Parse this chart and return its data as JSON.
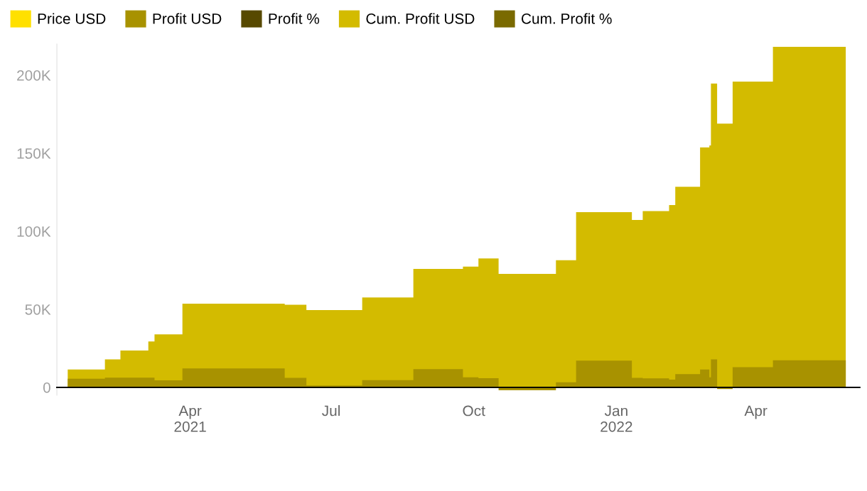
{
  "chart_data": {
    "type": "area",
    "x": [
      "2021-01-12",
      "2021-02-05",
      "2021-02-15",
      "2021-03-05",
      "2021-03-09",
      "2021-03-27",
      "2021-06-01",
      "2021-06-15",
      "2021-07-21",
      "2021-08-23",
      "2021-09-24",
      "2021-10-04",
      "2021-10-17",
      "2021-11-23",
      "2021-12-06",
      "2022-01-11",
      "2022-01-18",
      "2022-02-04",
      "2022-02-08",
      "2022-02-24",
      "2022-03-02",
      "2022-03-03",
      "2022-03-07",
      "2022-03-17",
      "2022-04-12",
      "2022-05-29"
    ],
    "series": [
      {
        "name": "Price USD",
        "color": "#ffe000",
        "values": [
          null,
          null,
          null,
          null,
          null,
          null,
          null,
          null,
          null,
          null,
          null,
          null,
          null,
          null,
          null,
          null,
          null,
          null,
          null,
          null,
          null,
          null,
          null,
          null,
          null,
          null
        ]
      },
      {
        "name": "Profit USD",
        "color": "#a89200",
        "values": [
          5600,
          6200,
          6200,
          6200,
          4500,
          12100,
          6100,
          1200,
          4700,
          11700,
          6500,
          5900,
          -1800,
          3300,
          17100,
          6100,
          5800,
          5000,
          8500,
          11500,
          6500,
          17900,
          -1000,
          12900,
          17400,
          17400
        ]
      },
      {
        "name": "Profit %",
        "color": "#574900",
        "values": [
          null,
          null,
          null,
          null,
          null,
          null,
          null,
          null,
          null,
          null,
          null,
          null,
          null,
          null,
          null,
          null,
          null,
          null,
          null,
          null,
          null,
          null,
          null,
          null,
          null,
          null
        ]
      },
      {
        "name": "Cum. Profit USD",
        "color": "#d3bb00",
        "values": [
          11500,
          17900,
          23600,
          29400,
          34000,
          53600,
          53000,
          49500,
          57600,
          75900,
          77400,
          82600,
          72700,
          81500,
          112300,
          107300,
          112900,
          116800,
          128500,
          153800,
          155000,
          194700,
          169000,
          195900,
          218200,
          218200
        ]
      },
      {
        "name": "Cum. Profit %",
        "color": "#7a6a00",
        "values": [
          null,
          null,
          null,
          null,
          null,
          null,
          null,
          null,
          null,
          null,
          null,
          null,
          null,
          null,
          null,
          null,
          null,
          null,
          null,
          null,
          null,
          null,
          null,
          null,
          null,
          null
        ]
      }
    ],
    "xlim": [
      "2021-01-05",
      "2022-06-07"
    ],
    "ylim": [
      -5000,
      220000
    ],
    "xticks": [
      {
        "value": "2021-04-01",
        "label": "Apr\n2021"
      },
      {
        "value": "2021-07-01",
        "label": "Jul"
      },
      {
        "value": "2021-10-01",
        "label": "Oct"
      },
      {
        "value": "2022-01-01",
        "label": "Jan\n2022"
      },
      {
        "value": "2022-04-01",
        "label": "Apr"
      }
    ],
    "yticks": [
      {
        "value": 0,
        "label": "0"
      },
      {
        "value": 50000,
        "label": "50K"
      },
      {
        "value": 100000,
        "label": "100K"
      },
      {
        "value": 150000,
        "label": "150K"
      },
      {
        "value": 200000,
        "label": "200K"
      }
    ],
    "grid": false,
    "legend": "top left"
  }
}
